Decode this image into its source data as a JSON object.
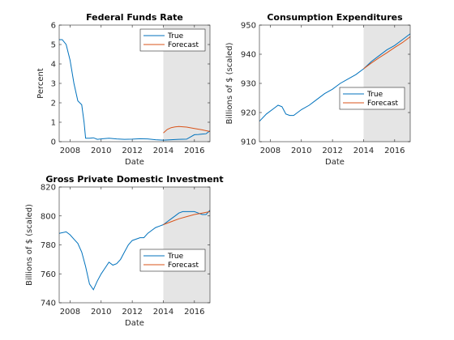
{
  "colors": {
    "true": "#0072BD",
    "forecast": "#D95319",
    "shade": "#E5E5E5",
    "axis": "#262626"
  },
  "chart_data": [
    {
      "type": "line",
      "title": "Federal Funds Rate",
      "xlabel": "Date",
      "ylabel": "Percent",
      "xlim": [
        2007.3,
        2017.0
      ],
      "ylim": [
        0,
        6
      ],
      "xticks": [
        2008,
        2010,
        2012,
        2014,
        2016
      ],
      "yticks": [
        0,
        1,
        2,
        3,
        4,
        5,
        6
      ],
      "shaded_region": [
        2014.0,
        2017.0
      ],
      "legend": {
        "position": "top-right",
        "entries": [
          "True",
          "Forecast"
        ]
      },
      "series": [
        {
          "name": "True",
          "color": "#0072BD",
          "x": [
            2007.3,
            2007.5,
            2007.75,
            2008.0,
            2008.25,
            2008.5,
            2008.75,
            2008.9,
            2009.0,
            2009.25,
            2009.5,
            2009.75,
            2010.0,
            2010.5,
            2011.0,
            2011.5,
            2012.0,
            2012.5,
            2013.0,
            2013.5,
            2014.0,
            2014.5,
            2015.0,
            2015.5,
            2016.0,
            2016.25,
            2016.5,
            2016.75,
            2017.0
          ],
          "y": [
            5.25,
            5.25,
            5.0,
            4.2,
            3.0,
            2.1,
            1.9,
            1.0,
            0.18,
            0.18,
            0.2,
            0.12,
            0.14,
            0.18,
            0.14,
            0.12,
            0.13,
            0.15,
            0.14,
            0.1,
            0.08,
            0.1,
            0.12,
            0.13,
            0.36,
            0.37,
            0.39,
            0.41,
            0.56
          ]
        },
        {
          "name": "Forecast",
          "color": "#D95319",
          "x": [
            2014.0,
            2014.25,
            2014.5,
            2014.75,
            2015.0,
            2015.5,
            2016.0,
            2016.5,
            2017.0
          ],
          "y": [
            0.45,
            0.63,
            0.72,
            0.76,
            0.78,
            0.75,
            0.68,
            0.61,
            0.52
          ]
        }
      ]
    },
    {
      "type": "line",
      "title": "Consumption Expenditures",
      "xlabel": "Date",
      "ylabel": "Billions of $ (scaled)",
      "xlim": [
        2007.3,
        2017.0
      ],
      "ylim": [
        910,
        950
      ],
      "xticks": [
        2008,
        2010,
        2012,
        2014,
        2016
      ],
      "yticks": [
        910,
        920,
        930,
        940,
        950
      ],
      "shaded_region": [
        2014.0,
        2017.0
      ],
      "legend": {
        "position": "bottom-right",
        "entries": [
          "True",
          "Forecast"
        ]
      },
      "series": [
        {
          "name": "True",
          "color": "#0072BD",
          "x": [
            2007.3,
            2007.75,
            2008.25,
            2008.5,
            2008.75,
            2009.0,
            2009.25,
            2009.5,
            2010.0,
            2010.5,
            2011.0,
            2011.5,
            2012.0,
            2012.5,
            2013.0,
            2013.5,
            2014.0,
            2014.5,
            2015.0,
            2015.5,
            2016.0,
            2016.5,
            2017.0
          ],
          "y": [
            917.0,
            919.5,
            921.5,
            922.5,
            922.0,
            919.5,
            919.0,
            919.0,
            921.0,
            922.5,
            924.5,
            926.5,
            928.0,
            930.0,
            931.5,
            933.0,
            935.0,
            937.5,
            939.5,
            941.5,
            943.0,
            945.0,
            947.0
          ]
        },
        {
          "name": "Forecast",
          "color": "#D95319",
          "x": [
            2014.0,
            2014.5,
            2015.0,
            2015.5,
            2016.0,
            2016.5,
            2017.0
          ],
          "y": [
            935.0,
            937.0,
            938.8,
            940.5,
            942.3,
            944.0,
            946.0
          ]
        }
      ]
    },
    {
      "type": "line",
      "title": "Gross Private Domestic Investment",
      "xlabel": "Date",
      "ylabel": "Billions of $ (scaled)",
      "xlim": [
        2007.3,
        2017.0
      ],
      "ylim": [
        740,
        820
      ],
      "xticks": [
        2008,
        2010,
        2012,
        2014,
        2016
      ],
      "yticks": [
        740,
        760,
        780,
        800,
        820
      ],
      "shaded_region": [
        2014.0,
        2017.0
      ],
      "legend": {
        "position": "bottom-right",
        "entries": [
          "True",
          "Forecast"
        ]
      },
      "series": [
        {
          "name": "True",
          "color": "#0072BD",
          "x": [
            2007.3,
            2007.75,
            2008.0,
            2008.25,
            2008.5,
            2008.75,
            2009.0,
            2009.25,
            2009.5,
            2009.75,
            2010.0,
            2010.25,
            2010.5,
            2010.75,
            2011.0,
            2011.25,
            2011.5,
            2011.75,
            2012.0,
            2012.25,
            2012.5,
            2012.75,
            2013.0,
            2013.25,
            2013.5,
            2013.75,
            2014.0,
            2014.25,
            2014.5,
            2014.75,
            2015.0,
            2015.25,
            2015.5,
            2015.75,
            2016.0,
            2016.25,
            2016.5,
            2016.75,
            2017.0
          ],
          "y": [
            788,
            789,
            787,
            784,
            781,
            775,
            765,
            753,
            749,
            755,
            760,
            764,
            768,
            766,
            767,
            770,
            775,
            780,
            783,
            784,
            785,
            785,
            788,
            790,
            792,
            793,
            794,
            796,
            798,
            800,
            802,
            803,
            803,
            803,
            803,
            802,
            801,
            801,
            804
          ]
        },
        {
          "name": "Forecast",
          "color": "#D95319",
          "x": [
            2014.0,
            2014.5,
            2015.0,
            2015.5,
            2016.0,
            2016.5,
            2017.0
          ],
          "y": [
            794,
            796,
            798,
            799.5,
            801,
            802,
            803
          ]
        }
      ]
    }
  ]
}
